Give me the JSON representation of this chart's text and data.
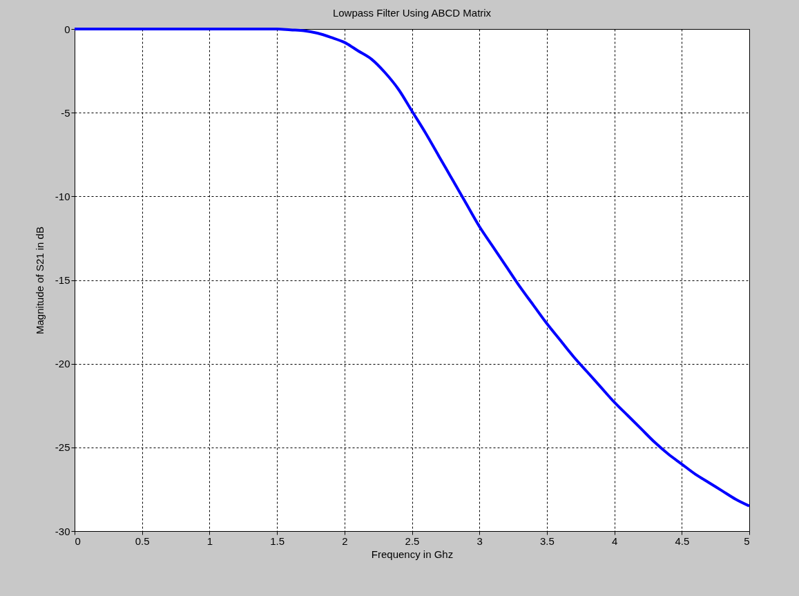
{
  "chart_data": {
    "type": "line",
    "title": "Lowpass Filter Using ABCD Matrix",
    "xlabel": "Frequency in Ghz",
    "ylabel": "Magnitude of S21 in dB",
    "x": [
      0,
      0.5,
      1,
      1.5,
      1.6,
      1.7,
      1.8,
      1.9,
      2,
      2.1,
      2.2,
      2.3,
      2.4,
      2.5,
      2.6,
      2.7,
      2.8,
      2.9,
      3,
      3.1,
      3.2,
      3.3,
      3.4,
      3.5,
      3.6,
      3.7,
      3.8,
      3.9,
      4,
      4.1,
      4.2,
      4.3,
      4.4,
      4.5,
      4.6,
      4.7,
      4.8,
      4.9,
      5
    ],
    "series": [
      {
        "color": "#0000ff",
        "values": [
          0,
          0,
          0,
          0,
          -0.05,
          -0.1,
          -0.25,
          -0.5,
          -0.8,
          -1.3,
          -1.8,
          -2.6,
          -3.6,
          -4.9,
          -6.2,
          -7.6,
          -9.0,
          -10.4,
          -11.8,
          -13.0,
          -14.2,
          -15.4,
          -16.5,
          -17.6,
          -18.6,
          -19.6,
          -20.5,
          -21.4,
          -22.3,
          -23.1,
          -23.9,
          -24.7,
          -25.4,
          -26.0,
          -26.6,
          -27.1,
          -27.6,
          -28.1,
          -28.5
        ]
      }
    ],
    "xlim": [
      0,
      5
    ],
    "ylim": [
      -30,
      0
    ],
    "xticks": [
      0,
      0.5,
      1,
      1.5,
      2,
      2.5,
      3,
      3.5,
      4,
      4.5,
      5
    ],
    "yticks": [
      -30,
      -25,
      -20,
      -15,
      -10,
      -5,
      0
    ],
    "grid": true
  }
}
